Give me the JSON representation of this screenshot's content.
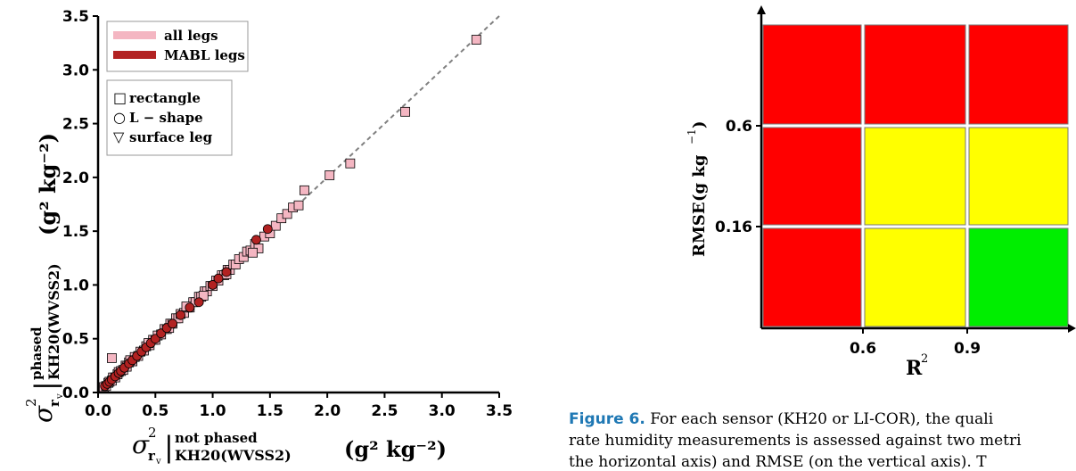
{
  "chart_data": [
    {
      "type": "scatter",
      "xlabel": {
        "sigma": "σ",
        "sup": "2",
        "sub": "r",
        "subsub": "v",
        "bar": "|",
        "condition": "not phased",
        "instrument": "KH20(WVSS2)",
        "units": "(g² kg⁻²)"
      },
      "ylabel": {
        "sigma": "σ",
        "sup": "2",
        "sub": "r",
        "subsub": "v",
        "bar": "|",
        "condition": "phased",
        "instrument": "KH20(WVSS2)",
        "units": "(g² kg⁻²)"
      },
      "xlim": [
        0.0,
        3.5
      ],
      "ylim": [
        0.0,
        3.5
      ],
      "xticks": [
        "0.0",
        "0.5",
        "1.0",
        "1.5",
        "2.0",
        "2.5",
        "3.0",
        "3.5"
      ],
      "yticks": [
        "0.0",
        "0.5",
        "1.0",
        "1.5",
        "2.0",
        "2.5",
        "3.0",
        "3.5"
      ],
      "reference_line": "1:1 dashed gray",
      "legend_color": {
        "placement": "top-left",
        "entries": [
          {
            "label": "all legs",
            "color": "#f4b6c2"
          },
          {
            "label": "MABL legs",
            "color": "#b22222"
          }
        ]
      },
      "legend_marker": {
        "placement": "upper-left",
        "entries": [
          {
            "symbol": "□",
            "label": "rectangle"
          },
          {
            "symbol": "○",
            "label": "L − shape"
          },
          {
            "symbol": "▽",
            "label": "surface leg"
          }
        ]
      },
      "series": [
        {
          "name": "all legs",
          "color": "#f4b6c2",
          "marker": "square",
          "x": [
            0.05,
            0.07,
            0.09,
            0.1,
            0.12,
            0.13,
            0.15,
            0.17,
            0.18,
            0.2,
            0.22,
            0.24,
            0.25,
            0.27,
            0.3,
            0.32,
            0.35,
            0.37,
            0.4,
            0.42,
            0.45,
            0.48,
            0.5,
            0.52,
            0.55,
            0.58,
            0.6,
            0.63,
            0.65,
            0.68,
            0.7,
            0.72,
            0.75,
            0.78,
            0.8,
            0.83,
            0.85,
            0.88,
            0.9,
            0.93,
            0.95,
            0.98,
            1.0,
            1.03,
            1.05,
            1.08,
            1.1,
            1.13,
            1.15,
            1.18,
            1.2,
            1.23,
            1.27,
            1.3,
            1.33,
            1.37,
            1.4,
            1.45,
            1.5,
            1.55,
            1.6,
            1.65,
            1.7,
            1.75,
            1.8,
            2.02,
            2.2,
            2.68,
            3.3,
            0.12,
            0.28,
            0.44,
            0.62,
            0.77,
            0.92,
            1.12,
            1.35
          ],
          "y": [
            0.05,
            0.06,
            0.09,
            0.1,
            0.11,
            0.14,
            0.14,
            0.17,
            0.19,
            0.2,
            0.21,
            0.25,
            0.24,
            0.28,
            0.29,
            0.33,
            0.34,
            0.38,
            0.39,
            0.43,
            0.44,
            0.49,
            0.49,
            0.53,
            0.54,
            0.59,
            0.59,
            0.64,
            0.64,
            0.69,
            0.69,
            0.73,
            0.74,
            0.79,
            0.79,
            0.84,
            0.84,
            0.89,
            0.89,
            0.94,
            0.94,
            0.99,
            0.99,
            1.04,
            1.04,
            1.09,
            1.09,
            1.14,
            1.14,
            1.19,
            1.19,
            1.24,
            1.26,
            1.31,
            1.32,
            1.38,
            1.34,
            1.45,
            1.48,
            1.55,
            1.62,
            1.66,
            1.72,
            1.74,
            1.88,
            2.02,
            2.13,
            2.61,
            3.28,
            0.32,
            0.3,
            0.46,
            0.6,
            0.8,
            0.9,
            1.1,
            1.3
          ]
        },
        {
          "name": "MABL legs",
          "color": "#b22222",
          "marker": "circle",
          "x": [
            0.06,
            0.08,
            0.1,
            0.12,
            0.15,
            0.18,
            0.2,
            0.23,
            0.27,
            0.3,
            0.34,
            0.38,
            0.42,
            0.46,
            0.5,
            0.55,
            0.6,
            0.65,
            0.72,
            0.8,
            0.88,
            1.0,
            1.05,
            1.12,
            1.38,
            1.48
          ],
          "y": [
            0.06,
            0.08,
            0.1,
            0.12,
            0.15,
            0.18,
            0.2,
            0.23,
            0.27,
            0.3,
            0.34,
            0.38,
            0.42,
            0.46,
            0.5,
            0.55,
            0.6,
            0.64,
            0.72,
            0.79,
            0.84,
            1.0,
            1.06,
            1.12,
            1.42,
            1.52
          ]
        }
      ]
    },
    {
      "type": "heatmap",
      "xlabel": {
        "main": "R",
        "sup": "2"
      },
      "ylabel": {
        "main": "RMSE",
        "units": "(g kg",
        "exp": "−1",
        "close": ")"
      },
      "xticks": [
        "0.6",
        "0.9"
      ],
      "yticks": [
        "0.6",
        "0.16"
      ],
      "grid": [
        [
          "#ff0000",
          "#ff0000",
          "#ff0000"
        ],
        [
          "#ff0000",
          "#ffff00",
          "#ffff00"
        ],
        [
          "#ff0000",
          "#ffff00",
          "#00ee00"
        ]
      ]
    }
  ],
  "caption": {
    "figure_label": "Figure 6.",
    "line1": "For each sensor (KH20 or LI-COR), the quali",
    "line2": "rate humidity measurements is assessed against two metri",
    "line3": "the horizontal axis) and RMSE (on the vertical axis). T"
  }
}
